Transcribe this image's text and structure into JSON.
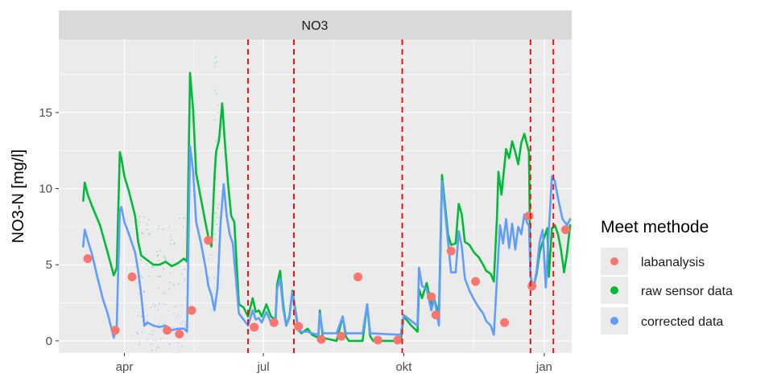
{
  "chart_data": {
    "type": "scatter",
    "facet_title": "NO3",
    "ylabel": "NO3-N [mg/l]",
    "xlabel": "",
    "x_unit": "day of year (2023-03-01 = 0)",
    "xlim": [
      -12,
      324
    ],
    "ylim": [
      -0.8,
      19.8
    ],
    "y_ticks": [
      0,
      5,
      10,
      15
    ],
    "x_ticks": [
      {
        "label": "apr",
        "x": 31
      },
      {
        "label": "jul",
        "x": 122
      },
      {
        "label": "okt",
        "x": 214
      },
      {
        "label": "jan",
        "x": 306
      }
    ],
    "grid": true,
    "legend_position": "right",
    "legend_title": "Meet methode",
    "vlines": [
      112,
      142,
      213,
      297,
      312
    ],
    "vline_color": "#ee1111",
    "series": [
      {
        "name": "labanalysis",
        "color": "#f8766d",
        "mode": "points",
        "points": [
          [
            7,
            5.4
          ],
          [
            25,
            0.7
          ],
          [
            36,
            4.2
          ],
          [
            59,
            0.7
          ],
          [
            67,
            0.45
          ],
          [
            75,
            2.0
          ],
          [
            86,
            6.6
          ],
          [
            116,
            0.9
          ],
          [
            129,
            1.2
          ],
          [
            145,
            0.95
          ],
          [
            160,
            0.1
          ],
          [
            173,
            0.3
          ],
          [
            184,
            4.2
          ],
          [
            197,
            0.05
          ],
          [
            210,
            0.05
          ],
          [
            232,
            2.9
          ],
          [
            235,
            1.7
          ],
          [
            245,
            5.9
          ],
          [
            261,
            3.9
          ],
          [
            280,
            1.2
          ],
          [
            296,
            8.2
          ],
          [
            298,
            3.6
          ],
          [
            320,
            7.3
          ]
        ]
      },
      {
        "name": "raw sensor data",
        "color": "#00ba38",
        "mode": "line",
        "points": [
          [
            4,
            9.2
          ],
          [
            5,
            10.4
          ],
          [
            7,
            9.6
          ],
          [
            10,
            8.8
          ],
          [
            15,
            7.6
          ],
          [
            20,
            5.8
          ],
          [
            24,
            4.3
          ],
          [
            26,
            4.8
          ],
          [
            28,
            12.4
          ],
          [
            29,
            12.0
          ],
          [
            31,
            10.8
          ],
          [
            34,
            9.8
          ],
          [
            38,
            8.2
          ],
          [
            40,
            6.5
          ],
          [
            42,
            5.6
          ],
          [
            46,
            5.3
          ],
          [
            50,
            5.0
          ],
          [
            54,
            5.0
          ],
          [
            58,
            5.2
          ],
          [
            62,
            4.9
          ],
          [
            66,
            5.1
          ],
          [
            70,
            5.4
          ],
          [
            72,
            5.2
          ],
          [
            74,
            17.6
          ],
          [
            76,
            15.2
          ],
          [
            78,
            11.0
          ],
          [
            81,
            9.4
          ],
          [
            84,
            7.8
          ],
          [
            86,
            6.8
          ],
          [
            88,
            6.2
          ],
          [
            90,
            10.8
          ],
          [
            91,
            12.4
          ],
          [
            93,
            13.2
          ],
          [
            95,
            15.6
          ],
          [
            97,
            12.8
          ],
          [
            99,
            10.2
          ],
          [
            101,
            8.2
          ],
          [
            103,
            7.8
          ],
          [
            106,
            2.4
          ],
          [
            109,
            2.2
          ],
          [
            112,
            1.6
          ],
          [
            115,
            2.8
          ],
          [
            117,
            1.9
          ],
          [
            119,
            2.0
          ],
          [
            121,
            1.6
          ],
          [
            124,
            2.4
          ],
          [
            127,
            1.6
          ],
          [
            130,
            1.4
          ],
          [
            131,
            3.7
          ],
          [
            133,
            4.6
          ],
          [
            135,
            2.4
          ],
          [
            137,
            1.0
          ],
          [
            139,
            1.6
          ],
          [
            141,
            3.3
          ],
          [
            143,
            2.0
          ],
          [
            145,
            0.7
          ],
          [
            147,
            0.5
          ],
          [
            151,
            0.8
          ],
          [
            154,
            0.4
          ],
          [
            158,
            0.2
          ],
          [
            159,
            2.0
          ],
          [
            161,
            0.2
          ],
          [
            170,
            0.0
          ],
          [
            174,
            1.6
          ],
          [
            176,
            0.3
          ],
          [
            178,
            0.0
          ],
          [
            187,
            0.0
          ],
          [
            190,
            2.4
          ],
          [
            192,
            0.3
          ],
          [
            194,
            0.0
          ],
          [
            212,
            0.0
          ],
          [
            214,
            1.6
          ],
          [
            219,
            1.0
          ],
          [
            223,
            0.6
          ],
          [
            224,
            3.4
          ],
          [
            226,
            2.8
          ],
          [
            229,
            3.8
          ],
          [
            232,
            2.4
          ],
          [
            234,
            2.7
          ],
          [
            237,
            1.8
          ],
          [
            239,
            10.9
          ],
          [
            241,
            9.0
          ],
          [
            243,
            7.0
          ],
          [
            245,
            6.3
          ],
          [
            248,
            6.4
          ],
          [
            250,
            9.0
          ],
          [
            252,
            8.3
          ],
          [
            254,
            6.5
          ],
          [
            257,
            6.3
          ],
          [
            260,
            5.8
          ],
          [
            263,
            5.5
          ],
          [
            266,
            5.0
          ],
          [
            268,
            4.6
          ],
          [
            271,
            4.4
          ],
          [
            273,
            3.9
          ],
          [
            275,
            8.0
          ],
          [
            276,
            11.1
          ],
          [
            278,
            9.6
          ],
          [
            281,
            12.6
          ],
          [
            283,
            12.0
          ],
          [
            285,
            13.1
          ],
          [
            287,
            12.4
          ],
          [
            289,
            11.6
          ],
          [
            291,
            13.0
          ],
          [
            293,
            13.6
          ],
          [
            295,
            12.8
          ],
          [
            296,
            12.4
          ],
          [
            297,
            4.2
          ],
          [
            299,
            3.5
          ],
          [
            301,
            4.4
          ],
          [
            303,
            5.8
          ],
          [
            305,
            6.5
          ],
          [
            308,
            7.4
          ],
          [
            309,
            4.2
          ],
          [
            311,
            7.4
          ],
          [
            313,
            7.6
          ],
          [
            315,
            7.0
          ],
          [
            317,
            6.0
          ],
          [
            319,
            4.5
          ],
          [
            321,
            5.8
          ],
          [
            323,
            7.6
          ]
        ]
      },
      {
        "name": "corrected data",
        "color": "#619cff",
        "mode": "line",
        "points": [
          [
            4,
            6.2
          ],
          [
            5,
            7.3
          ],
          [
            7,
            6.6
          ],
          [
            10,
            5.6
          ],
          [
            13,
            4.3
          ],
          [
            17,
            2.7
          ],
          [
            20,
            1.8
          ],
          [
            24,
            0.2
          ],
          [
            26,
            1.0
          ],
          [
            28,
            8.5
          ],
          [
            29,
            8.8
          ],
          [
            31,
            7.8
          ],
          [
            34,
            7.0
          ],
          [
            38,
            5.8
          ],
          [
            40,
            4.6
          ],
          [
            42,
            3.0
          ],
          [
            44,
            1.0
          ],
          [
            46,
            1.2
          ],
          [
            50,
            1.0
          ],
          [
            54,
            0.9
          ],
          [
            58,
            1.0
          ],
          [
            62,
            0.7
          ],
          [
            66,
            0.8
          ],
          [
            70,
            0.8
          ],
          [
            72,
            0.6
          ],
          [
            74,
            12.8
          ],
          [
            76,
            11.2
          ],
          [
            78,
            7.8
          ],
          [
            81,
            6.5
          ],
          [
            84,
            4.9
          ],
          [
            86,
            3.6
          ],
          [
            88,
            3.0
          ],
          [
            90,
            2.0
          ],
          [
            92,
            3.5
          ],
          [
            94,
            7.8
          ],
          [
            96,
            10.3
          ],
          [
            98,
            8.2
          ],
          [
            100,
            7.0
          ],
          [
            102,
            6.4
          ],
          [
            106,
            1.8
          ],
          [
            109,
            1.4
          ],
          [
            112,
            1.0
          ],
          [
            115,
            2.0
          ],
          [
            117,
            1.4
          ],
          [
            119,
            1.5
          ],
          [
            121,
            1.2
          ],
          [
            124,
            1.9
          ],
          [
            127,
            1.2
          ],
          [
            130,
            1.1
          ],
          [
            131,
            3.4
          ],
          [
            133,
            4.1
          ],
          [
            135,
            2.1
          ],
          [
            137,
            1.0
          ],
          [
            139,
            1.5
          ],
          [
            141,
            3.2
          ],
          [
            143,
            1.8
          ],
          [
            145,
            0.7
          ],
          [
            147,
            0.6
          ],
          [
            151,
            0.6
          ],
          [
            154,
            0.5
          ],
          [
            158,
            0.4
          ],
          [
            159,
            1.8
          ],
          [
            161,
            0.5
          ],
          [
            170,
            0.5
          ],
          [
            174,
            1.6
          ],
          [
            176,
            0.5
          ],
          [
            187,
            0.5
          ],
          [
            190,
            2.4
          ],
          [
            192,
            0.5
          ],
          [
            212,
            0.4
          ],
          [
            214,
            1.7
          ],
          [
            219,
            1.3
          ],
          [
            223,
            1.0
          ],
          [
            224,
            4.8
          ],
          [
            226,
            3.6
          ],
          [
            229,
            3.4
          ],
          [
            232,
            2.0
          ],
          [
            234,
            2.8
          ],
          [
            237,
            1.0
          ],
          [
            239,
            10.5
          ],
          [
            241,
            8.6
          ],
          [
            243,
            6.5
          ],
          [
            245,
            4.5
          ],
          [
            248,
            4.5
          ],
          [
            250,
            7.2
          ],
          [
            252,
            6.2
          ],
          [
            254,
            4.1
          ],
          [
            257,
            3.3
          ],
          [
            260,
            2.7
          ],
          [
            263,
            2.2
          ],
          [
            266,
            1.8
          ],
          [
            268,
            1.3
          ],
          [
            271,
            1.0
          ],
          [
            273,
            0.4
          ],
          [
            275,
            4.0
          ],
          [
            277,
            7.6
          ],
          [
            279,
            6.4
          ],
          [
            281,
            8.0
          ],
          [
            283,
            6.1
          ],
          [
            285,
            7.7
          ],
          [
            287,
            6.0
          ],
          [
            289,
            7.5
          ],
          [
            291,
            7.0
          ],
          [
            293,
            8.3
          ],
          [
            295,
            7.7
          ],
          [
            296,
            7.6
          ],
          [
            297,
            4.3
          ],
          [
            299,
            3.4
          ],
          [
            301,
            4.6
          ],
          [
            303,
            6.5
          ],
          [
            305,
            7.3
          ],
          [
            307,
            3.5
          ],
          [
            309,
            7.2
          ],
          [
            311,
            10.8
          ],
          [
            313,
            10.5
          ],
          [
            315,
            9.4
          ],
          [
            318,
            8.0
          ],
          [
            321,
            7.6
          ],
          [
            323,
            8.0
          ]
        ]
      }
    ]
  }
}
